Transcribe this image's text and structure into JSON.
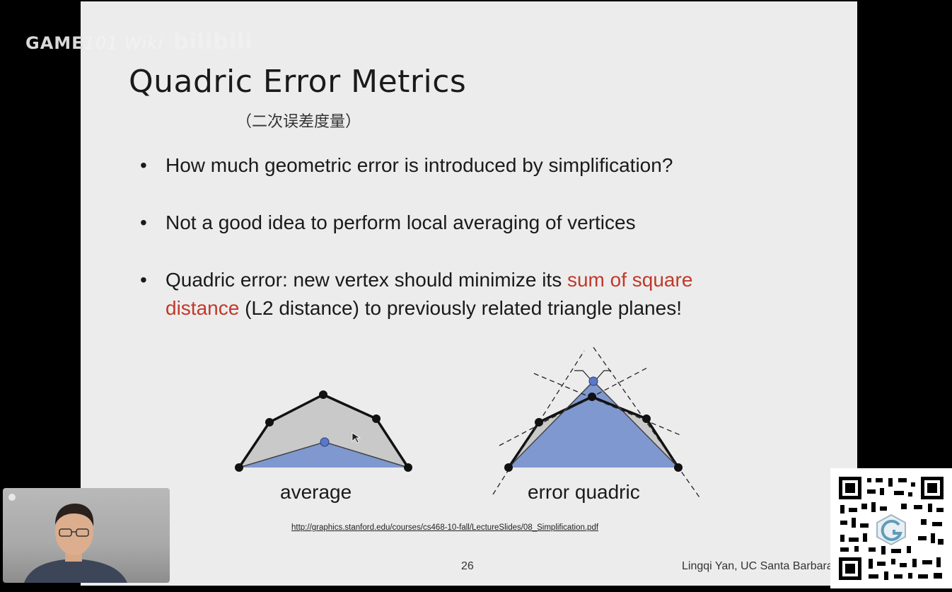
{
  "watermark": {
    "text": "GAME",
    "ghost": "101 Wiki",
    "ghost2": "bilibili"
  },
  "slide": {
    "title": "Quadric Error Metrics",
    "subtitle": "（二次误差度量）",
    "bullets": [
      {
        "dot": "•",
        "text": "How much geometric error is introduced by simplification?"
      },
      {
        "dot": "•",
        "text": "Not a good idea to perform local averaging of vertices"
      },
      {
        "dot": "•",
        "pre": "Quadric error: new vertex should minimize its ",
        "red1": "sum of square",
        "red2": "distance",
        "post": " (L2 distance) to previously related triangle planes!"
      }
    ],
    "figure_labels": {
      "average": "average",
      "quadric": "error quadric"
    },
    "url": "http://graphics.stanford.edu/courses/cs468-10-fall/LectureSlides/08_Simplification.pdf",
    "page_number": "26",
    "author": "Lingqi Yan, UC Santa Barbara"
  },
  "colors": {
    "gray_fill": "#c9c9c9",
    "blue_fill": "#7f98cf",
    "blue_vertex": "#5b78c7",
    "red_text": "#c0392b"
  },
  "overlays": {
    "webcam": "presenter-webcam",
    "qr": "qr-code-icon"
  }
}
